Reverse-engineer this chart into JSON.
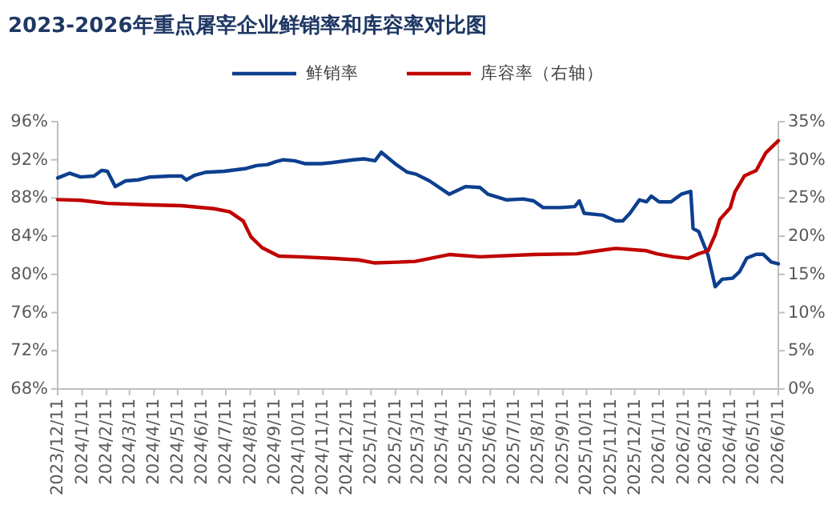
{
  "chart_data": {
    "type": "line",
    "title": "2023-2026年重点屠宰企业鲜销率和库容率对比图",
    "legend": "top",
    "marker": "none",
    "line_style": "solid",
    "x": [
      "2023-12-11",
      "2023-12-26",
      "2024-01-09",
      "2024-01-26",
      "2024-02-05",
      "2024-02-12",
      "2024-02-22",
      "2024-03-06",
      "2024-03-22",
      "2024-04-06",
      "2024-05-02",
      "2024-05-16",
      "2024-05-22",
      "2024-06-02",
      "2024-06-16",
      "2024-07-09",
      "2024-08-06",
      "2024-08-19",
      "2024-09-02",
      "2024-09-12",
      "2024-09-22",
      "2024-10-06",
      "2024-10-19",
      "2024-11-09",
      "2024-11-22",
      "2024-12-19",
      "2025-01-02",
      "2025-01-16",
      "2025-01-24",
      "2025-02-12",
      "2025-02-26",
      "2025-03-09",
      "2025-03-26",
      "2025-04-20",
      "2025-05-11",
      "2025-05-29",
      "2025-06-08",
      "2025-07-02",
      "2025-07-23",
      "2025-08-05",
      "2025-08-17",
      "2025-09-08",
      "2025-09-26",
      "2025-10-02",
      "2025-10-08",
      "2025-11-01",
      "2025-11-17",
      "2025-11-26",
      "2025-12-05",
      "2025-12-17",
      "2025-12-26",
      "2026-01-01",
      "2026-01-11",
      "2026-01-26",
      "2026-02-08",
      "2026-02-20",
      "2026-02-23",
      "2026-03-02",
      "2026-03-14",
      "2026-03-23",
      "2026-04-01",
      "2026-04-14",
      "2026-04-23",
      "2026-05-02",
      "2026-05-14",
      "2026-05-23",
      "2026-06-02",
      "2026-06-11"
    ],
    "series": [
      {
        "name": "鲜销率",
        "color": "#0d3f8f",
        "values": [
          90.1,
          90.6,
          90.2,
          90.3,
          90.9,
          90.8,
          89.2,
          89.8,
          89.9,
          90.2,
          90.3,
          90.3,
          89.9,
          90.4,
          90.7,
          90.8,
          91.1,
          91.4,
          91.5,
          91.8,
          92.0,
          91.9,
          91.6,
          91.6,
          91.7,
          92.0,
          92.1,
          91.9,
          92.8,
          91.5,
          90.7,
          90.5,
          89.8,
          88.4,
          89.2,
          89.1,
          88.4,
          87.8,
          87.9,
          87.7,
          87.0,
          87.0,
          87.1,
          87.7,
          86.4,
          86.2,
          85.6,
          85.6,
          86.4,
          87.8,
          87.6,
          88.2,
          87.6,
          87.6,
          88.4,
          88.7,
          84.8,
          84.5,
          82.0,
          78.7,
          79.5,
          79.6,
          80.3,
          81.7,
          82.1,
          82.1,
          81.3,
          81.1
        ]
      },
      {
        "name": "库容率（右轴）",
        "color": "#c00000",
        "axis": "y2",
        "x": [
          "2023-12-11",
          "2024-01-09",
          "2024-02-12",
          "2024-04-06",
          "2024-05-16",
          "2024-06-26",
          "2024-07-16",
          "2024-08-02",
          "2024-08-12",
          "2024-08-26",
          "2024-09-16",
          "2024-10-12",
          "2024-11-22",
          "2024-12-26",
          "2025-01-16",
          "2025-02-12",
          "2025-03-08",
          "2025-04-20",
          "2025-05-29",
          "2025-08-05",
          "2025-09-29",
          "2025-10-26",
          "2025-11-17",
          "2025-12-26",
          "2026-01-08",
          "2026-01-29",
          "2026-02-17",
          "2026-03-02",
          "2026-03-14",
          "2026-03-23",
          "2026-03-29",
          "2026-04-11",
          "2026-04-17",
          "2026-04-29",
          "2026-05-14",
          "2026-05-26",
          "2026-06-11"
        ],
        "values": [
          24.8,
          24.7,
          24.3,
          24.1,
          24.0,
          23.6,
          23.2,
          22.0,
          19.9,
          18.5,
          17.4,
          17.3,
          17.1,
          16.9,
          16.5,
          16.6,
          16.7,
          17.6,
          17.3,
          17.6,
          17.7,
          18.1,
          18.4,
          18.1,
          17.7,
          17.3,
          17.1,
          17.7,
          18.1,
          20.2,
          22.2,
          23.7,
          25.8,
          27.9,
          28.6,
          30.9,
          32.5
        ]
      }
    ],
    "xlim": [
      "2023-12-11",
      "2026-06-11"
    ],
    "xticks": [
      {
        "value": "2023-12-11",
        "label": "2023/12/11"
      },
      {
        "value": "2024-01-11",
        "label": "2024/1/11"
      },
      {
        "value": "2024-02-11",
        "label": "2024/2/11"
      },
      {
        "value": "2024-03-11",
        "label": "2024/3/11"
      },
      {
        "value": "2024-04-11",
        "label": "2024/4/11"
      },
      {
        "value": "2024-05-11",
        "label": "2024/5/11"
      },
      {
        "value": "2024-06-11",
        "label": "2024/6/11"
      },
      {
        "value": "2024-07-11",
        "label": "2024/7/11"
      },
      {
        "value": "2024-08-11",
        "label": "2024/8/11"
      },
      {
        "value": "2024-09-11",
        "label": "2024/9/11"
      },
      {
        "value": "2024-10-11",
        "label": "2024/10/11"
      },
      {
        "value": "2024-11-11",
        "label": "2024/11/11"
      },
      {
        "value": "2024-12-11",
        "label": "2024/12/11"
      },
      {
        "value": "2025-01-11",
        "label": "2025/1/11"
      },
      {
        "value": "2025-02-11",
        "label": "2025/2/11"
      },
      {
        "value": "2025-03-11",
        "label": "2025/3/11"
      },
      {
        "value": "2025-04-11",
        "label": "2025/4/11"
      },
      {
        "value": "2025-05-11",
        "label": "2025/5/11"
      },
      {
        "value": "2025-06-11",
        "label": "2025/6/11"
      },
      {
        "value": "2025-07-11",
        "label": "2025/7/11"
      },
      {
        "value": "2025-08-11",
        "label": "2025/8/11"
      },
      {
        "value": "2025-09-11",
        "label": "2025/9/11"
      },
      {
        "value": "2025-10-11",
        "label": "2025/10/11"
      },
      {
        "value": "2025-11-11",
        "label": "2025/11/11"
      },
      {
        "value": "2025-12-11",
        "label": "2025/12/11"
      },
      {
        "value": "2026-01-11",
        "label": "2026/1/11"
      },
      {
        "value": "2026-02-11",
        "label": "2026/2/11"
      },
      {
        "value": "2026-03-11",
        "label": "2026/3/11"
      },
      {
        "value": "2026-04-11",
        "label": "2026/4/11"
      },
      {
        "value": "2026-05-11",
        "label": "2026/5/11"
      },
      {
        "value": "2026-06-11",
        "label": "2026/6/11"
      }
    ],
    "ylim": [
      68,
      96
    ],
    "yticks": [
      {
        "value": 68,
        "label": "68%"
      },
      {
        "value": 72,
        "label": "72%"
      },
      {
        "value": 76,
        "label": "76%"
      },
      {
        "value": 80,
        "label": "80%"
      },
      {
        "value": 84,
        "label": "84%"
      },
      {
        "value": 88,
        "label": "88%"
      },
      {
        "value": 92,
        "label": "92%"
      },
      {
        "value": 96,
        "label": "96%"
      }
    ],
    "y2lim": [
      0,
      35
    ],
    "y2ticks": [
      {
        "value": 0,
        "label": "0%"
      },
      {
        "value": 5,
        "label": "5%"
      },
      {
        "value": 10,
        "label": "10%"
      },
      {
        "value": 15,
        "label": "15%"
      },
      {
        "value": 20,
        "label": "20%"
      },
      {
        "value": 25,
        "label": "25%"
      },
      {
        "value": 30,
        "label": "30%"
      },
      {
        "value": 35,
        "label": "35%"
      }
    ]
  }
}
